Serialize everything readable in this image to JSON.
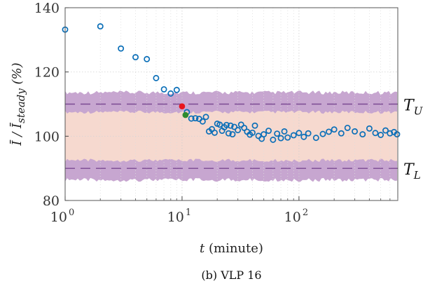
{
  "chart_data": {
    "type": "scatter",
    "title": "",
    "caption": "(b) VLP 16",
    "xlabel": "t (minute)",
    "ylabel": "Ī / Ī_steady (%)",
    "ylabel_parts": {
      "main": "Ī / Ī",
      "sub": "steady",
      "unit": "(%)"
    },
    "xscale": "log",
    "xlim": [
      1,
      700
    ],
    "ylim": [
      80,
      140
    ],
    "x_ticks": [
      {
        "value": 1,
        "base": "10",
        "exp": "0"
      },
      {
        "value": 10,
        "base": "10",
        "exp": "1"
      },
      {
        "value": 100,
        "base": "10",
        "exp": "2"
      }
    ],
    "y_ticks": [
      80,
      100,
      120,
      140
    ],
    "y_tick_labels": [
      "80",
      "100",
      "120",
      "140"
    ],
    "grid": true,
    "bands": {
      "inner": {
        "center": 100,
        "half_width_base": 7,
        "color": "#f6d9cf"
      },
      "outer": {
        "center": 100,
        "half_width_base": 13,
        "thickness": 4,
        "color": "#c7a6d0"
      }
    },
    "lines": [
      {
        "label": "T",
        "sub": "U",
        "y": 110,
        "color": "#7b4a93",
        "style": "dashed"
      },
      {
        "label": "T",
        "sub": "L",
        "y": 90,
        "color": "#7b4a93",
        "style": "dashed"
      }
    ],
    "series": [
      {
        "marker": "circle-open",
        "color": "#0b6fb8",
        "points": [
          [
            1,
            133.2
          ],
          [
            2,
            134.2
          ],
          [
            3,
            127.3
          ],
          [
            4,
            124.6
          ],
          [
            5,
            124.0
          ],
          [
            6,
            118.1
          ],
          [
            7,
            114.6
          ],
          [
            8,
            113.3
          ],
          [
            9,
            114.4
          ],
          [
            11,
            107.5
          ],
          [
            12,
            105.5
          ],
          [
            13,
            105.6
          ],
          [
            14,
            105.4
          ],
          [
            15,
            104.6
          ],
          [
            16,
            106.0
          ],
          [
            17,
            101.5
          ],
          [
            18,
            102.2
          ],
          [
            19,
            101.1
          ],
          [
            20,
            103.9
          ],
          [
            21,
            103.6
          ],
          [
            22,
            101.7
          ],
          [
            23,
            102.8
          ],
          [
            24,
            103.5
          ],
          [
            25,
            100.9
          ],
          [
            26,
            103.3
          ],
          [
            27,
            100.6
          ],
          [
            28,
            102.9
          ],
          [
            30,
            101.9
          ],
          [
            32,
            103.6
          ],
          [
            34,
            102.6
          ],
          [
            36,
            101.4
          ],
          [
            38,
            100.5
          ],
          [
            40,
            101.1
          ],
          [
            42,
            103.3
          ],
          [
            45,
            100.1
          ],
          [
            48,
            99.2
          ],
          [
            50,
            100.6
          ],
          [
            55,
            101.7
          ],
          [
            60,
            98.9
          ],
          [
            65,
            100.8
          ],
          [
            70,
            99.4
          ],
          [
            75,
            101.5
          ],
          [
            80,
            99.6
          ],
          [
            90,
            100.3
          ],
          [
            100,
            101.0
          ],
          [
            110,
            99.8
          ],
          [
            120,
            100.9
          ],
          [
            140,
            99.5
          ],
          [
            160,
            100.7
          ],
          [
            180,
            101.4
          ],
          [
            200,
            102.1
          ],
          [
            230,
            100.9
          ],
          [
            260,
            102.6
          ],
          [
            300,
            101.5
          ],
          [
            350,
            100.6
          ],
          [
            400,
            102.4
          ],
          [
            450,
            101.0
          ],
          [
            500,
            100.4
          ],
          [
            550,
            101.8
          ],
          [
            600,
            100.9
          ],
          [
            650,
            101.3
          ],
          [
            690,
            100.6
          ]
        ]
      },
      {
        "marker": "dot",
        "color": "#e8141c",
        "points": [
          [
            10,
            109.3
          ]
        ]
      },
      {
        "marker": "dot",
        "color": "#2e8b2e",
        "points": [
          [
            10.7,
            106.6
          ]
        ]
      }
    ]
  }
}
